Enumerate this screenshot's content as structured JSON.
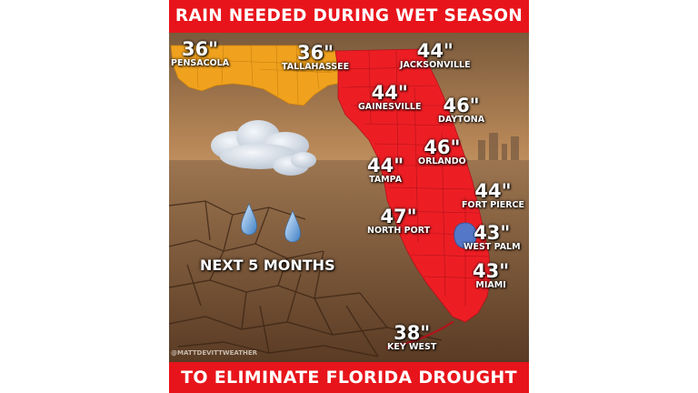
{
  "header": {
    "title": "RAIN NEEDED DURING WET SEASON"
  },
  "footer": {
    "text": "TO ELIMINATE FLORIDA DROUGHT"
  },
  "timeframe": "NEXT 5 MONTHS",
  "watermark": "@MATTDEVITTWEATHER",
  "colors": {
    "banner": "#e8141b",
    "panhandle": "#f0a21e",
    "peninsula": "#ec1e24",
    "lake": "#5577c8"
  },
  "cities": [
    {
      "name": "PENSACOLA",
      "value": "36\""
    },
    {
      "name": "TALLAHASSEE",
      "value": "36\""
    },
    {
      "name": "JACKSONVILLE",
      "value": "44\""
    },
    {
      "name": "GAINESVILLE",
      "value": "44\""
    },
    {
      "name": "DAYTONA",
      "value": "46\""
    },
    {
      "name": "ORLANDO",
      "value": "46\""
    },
    {
      "name": "TAMPA",
      "value": "44\""
    },
    {
      "name": "FORT PIERCE",
      "value": "44\""
    },
    {
      "name": "NORTH PORT",
      "value": "47\""
    },
    {
      "name": "WEST PALM",
      "value": "43\""
    },
    {
      "name": "MIAMI",
      "value": "43\""
    },
    {
      "name": "KEY WEST",
      "value": "38\""
    }
  ]
}
